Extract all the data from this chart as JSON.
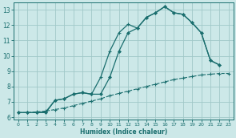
{
  "xlabel": "Humidex (Indice chaleur)",
  "bg_color": "#cce8e8",
  "grid_color": "#a0c8c8",
  "line_color": "#1a6e6e",
  "xlim": [
    -0.5,
    23.5
  ],
  "ylim": [
    5.85,
    13.45
  ],
  "xticks": [
    0,
    1,
    2,
    3,
    4,
    5,
    6,
    7,
    8,
    9,
    10,
    11,
    12,
    13,
    14,
    15,
    16,
    17,
    18,
    19,
    20,
    21,
    22,
    23
  ],
  "yticks": [
    6,
    7,
    8,
    9,
    10,
    11,
    12,
    13
  ],
  "curve_linear_x": [
    0,
    1,
    2,
    3,
    4,
    5,
    6,
    7,
    8,
    9,
    10,
    11,
    12,
    13,
    14,
    15,
    16,
    17,
    18,
    19,
    20,
    21,
    22,
    23
  ],
  "curve_linear_y": [
    6.3,
    6.3,
    6.35,
    6.4,
    6.5,
    6.6,
    6.75,
    6.9,
    7.05,
    7.2,
    7.4,
    7.55,
    7.7,
    7.85,
    8.0,
    8.15,
    8.3,
    8.45,
    8.55,
    8.65,
    8.75,
    8.8,
    8.85,
    8.85
  ],
  "curve_mid_x": [
    0,
    1,
    2,
    3,
    4,
    5,
    6,
    7,
    8,
    9,
    10,
    11,
    12,
    13,
    14,
    15,
    16,
    17,
    18,
    19,
    20,
    21,
    22
  ],
  "curve_mid_y": [
    6.3,
    6.3,
    6.3,
    6.3,
    7.1,
    7.2,
    7.5,
    7.6,
    7.5,
    7.5,
    8.6,
    10.3,
    11.5,
    11.8,
    12.5,
    12.8,
    13.2,
    12.8,
    12.7,
    12.15,
    11.5,
    9.7,
    9.4
  ],
  "curve_upper_x": [
    0,
    1,
    2,
    3,
    4,
    5,
    6,
    7,
    8,
    9,
    10,
    11,
    12,
    13,
    14,
    15,
    16,
    17,
    18,
    19,
    20,
    21,
    22
  ],
  "curve_upper_y": [
    6.3,
    6.3,
    6.3,
    6.35,
    7.1,
    7.2,
    7.5,
    7.6,
    7.5,
    8.6,
    10.3,
    11.5,
    12.05,
    11.8,
    12.5,
    12.8,
    13.2,
    12.8,
    12.7,
    12.15,
    11.5,
    9.7,
    9.4
  ]
}
